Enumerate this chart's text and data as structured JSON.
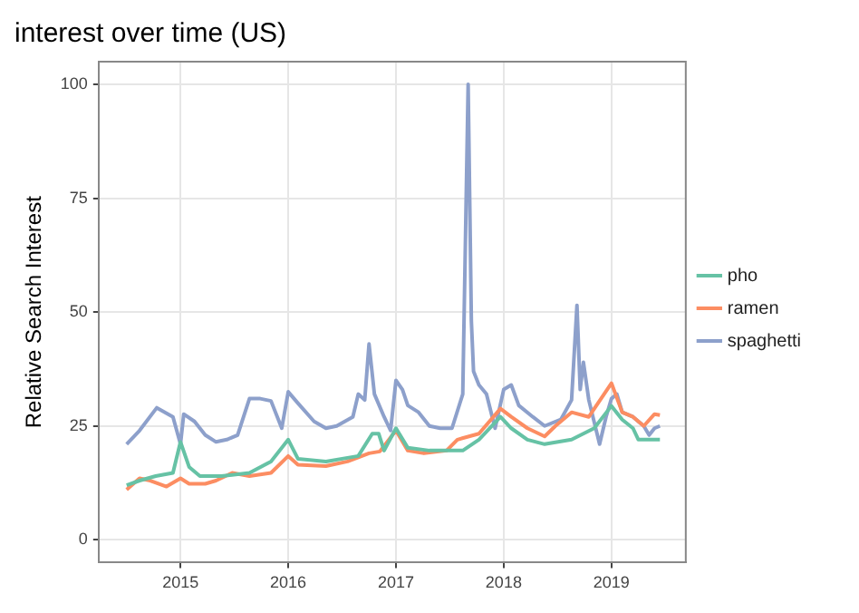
{
  "chart_data": {
    "type": "line",
    "title": "interest over time (US)",
    "ylabel": "Relative Search Interest",
    "xlim": [
      2014.24,
      2019.69
    ],
    "xticks": [
      2015,
      2016,
      2017,
      2018,
      2019
    ],
    "ylim": [
      -5,
      105
    ],
    "yticks": [
      0,
      25,
      50,
      75,
      100
    ],
    "grid": true,
    "legend": "right",
    "marker": "none",
    "line_style": "solid",
    "series": [
      {
        "name": "pho",
        "color": "#66c2a5",
        "x": [
          2014.5,
          2014.62,
          2014.77,
          2014.93,
          2015.0,
          2015.08,
          2015.18,
          2015.38,
          2015.64,
          2015.84,
          2016.0,
          2016.09,
          2016.35,
          2016.65,
          2016.78,
          2016.84,
          2016.89,
          2017.0,
          2017.11,
          2017.31,
          2017.62,
          2017.77,
          2017.97,
          2018.07,
          2018.22,
          2018.38,
          2018.63,
          2018.84,
          2019.0,
          2019.1,
          2019.2,
          2019.25,
          2019.4,
          2019.45
        ],
        "values": [
          12,
          13,
          14,
          14.7,
          21.5,
          16,
          14,
          14,
          14.7,
          17.2,
          22,
          17.8,
          17.2,
          18.4,
          23.3,
          23.3,
          19.6,
          24.5,
          20.2,
          19.6,
          19.6,
          22,
          27,
          24.5,
          22,
          21,
          22,
          24.5,
          29.4,
          26.4,
          24.5,
          22,
          22,
          22
        ]
      },
      {
        "name": "ramen",
        "color": "#fc8d62",
        "x": [
          2014.5,
          2014.62,
          2014.72,
          2014.87,
          2015.0,
          2015.08,
          2015.23,
          2015.33,
          2015.48,
          2015.64,
          2015.84,
          2016.0,
          2016.09,
          2016.35,
          2016.55,
          2016.75,
          2016.85,
          2017.0,
          2017.11,
          2017.26,
          2017.47,
          2017.57,
          2017.77,
          2017.97,
          2018.07,
          2018.22,
          2018.38,
          2018.48,
          2018.63,
          2018.79,
          2019.0,
          2019.1,
          2019.2,
          2019.3,
          2019.4,
          2019.45
        ],
        "values": [
          11,
          13.5,
          13,
          11.7,
          13.5,
          12.3,
          12.3,
          13,
          14.7,
          14,
          14.7,
          18.4,
          16.5,
          16.2,
          17.2,
          19,
          19.4,
          24,
          19.6,
          19,
          19.6,
          22,
          23.3,
          28.8,
          27,
          24.5,
          22.7,
          25,
          28,
          27,
          34.4,
          28,
          27,
          25,
          27.6,
          27.4
        ]
      },
      {
        "name": "spaghetti",
        "color": "#8da0cb",
        "x": [
          2014.5,
          2014.62,
          2014.78,
          2014.93,
          2015.0,
          2015.03,
          2015.13,
          2015.23,
          2015.33,
          2015.43,
          2015.53,
          2015.64,
          2015.74,
          2015.84,
          2015.94,
          2016.0,
          2016.09,
          2016.24,
          2016.35,
          2016.45,
          2016.6,
          2016.65,
          2016.71,
          2016.75,
          2016.8,
          2016.89,
          2016.95,
          2017.0,
          2017.06,
          2017.11,
          2017.21,
          2017.31,
          2017.41,
          2017.52,
          2017.62,
          2017.67,
          2017.7,
          2017.72,
          2017.77,
          2017.84,
          2017.92,
          2018.0,
          2018.07,
          2018.14,
          2018.27,
          2018.38,
          2018.53,
          2018.63,
          2018.68,
          2018.71,
          2018.74,
          2018.79,
          2018.89,
          2018.95,
          2019.0,
          2019.05,
          2019.1,
          2019.2,
          2019.3,
          2019.35,
          2019.4,
          2019.45
        ],
        "values": [
          21,
          24,
          29,
          27,
          21,
          27.6,
          26,
          23,
          21.5,
          22,
          23,
          31,
          31,
          30.5,
          24.5,
          32.5,
          30,
          26,
          24.5,
          25,
          27,
          32,
          30.7,
          43,
          32,
          27,
          24,
          35,
          33,
          29.5,
          28,
          25,
          24.5,
          24.5,
          32,
          100,
          48,
          37,
          34,
          32,
          24.5,
          33,
          34,
          29.5,
          27,
          25,
          26.4,
          30.7,
          51.5,
          33,
          39,
          30.7,
          21,
          27,
          31,
          32,
          28,
          27,
          25,
          23,
          24.5,
          25
        ]
      }
    ]
  }
}
